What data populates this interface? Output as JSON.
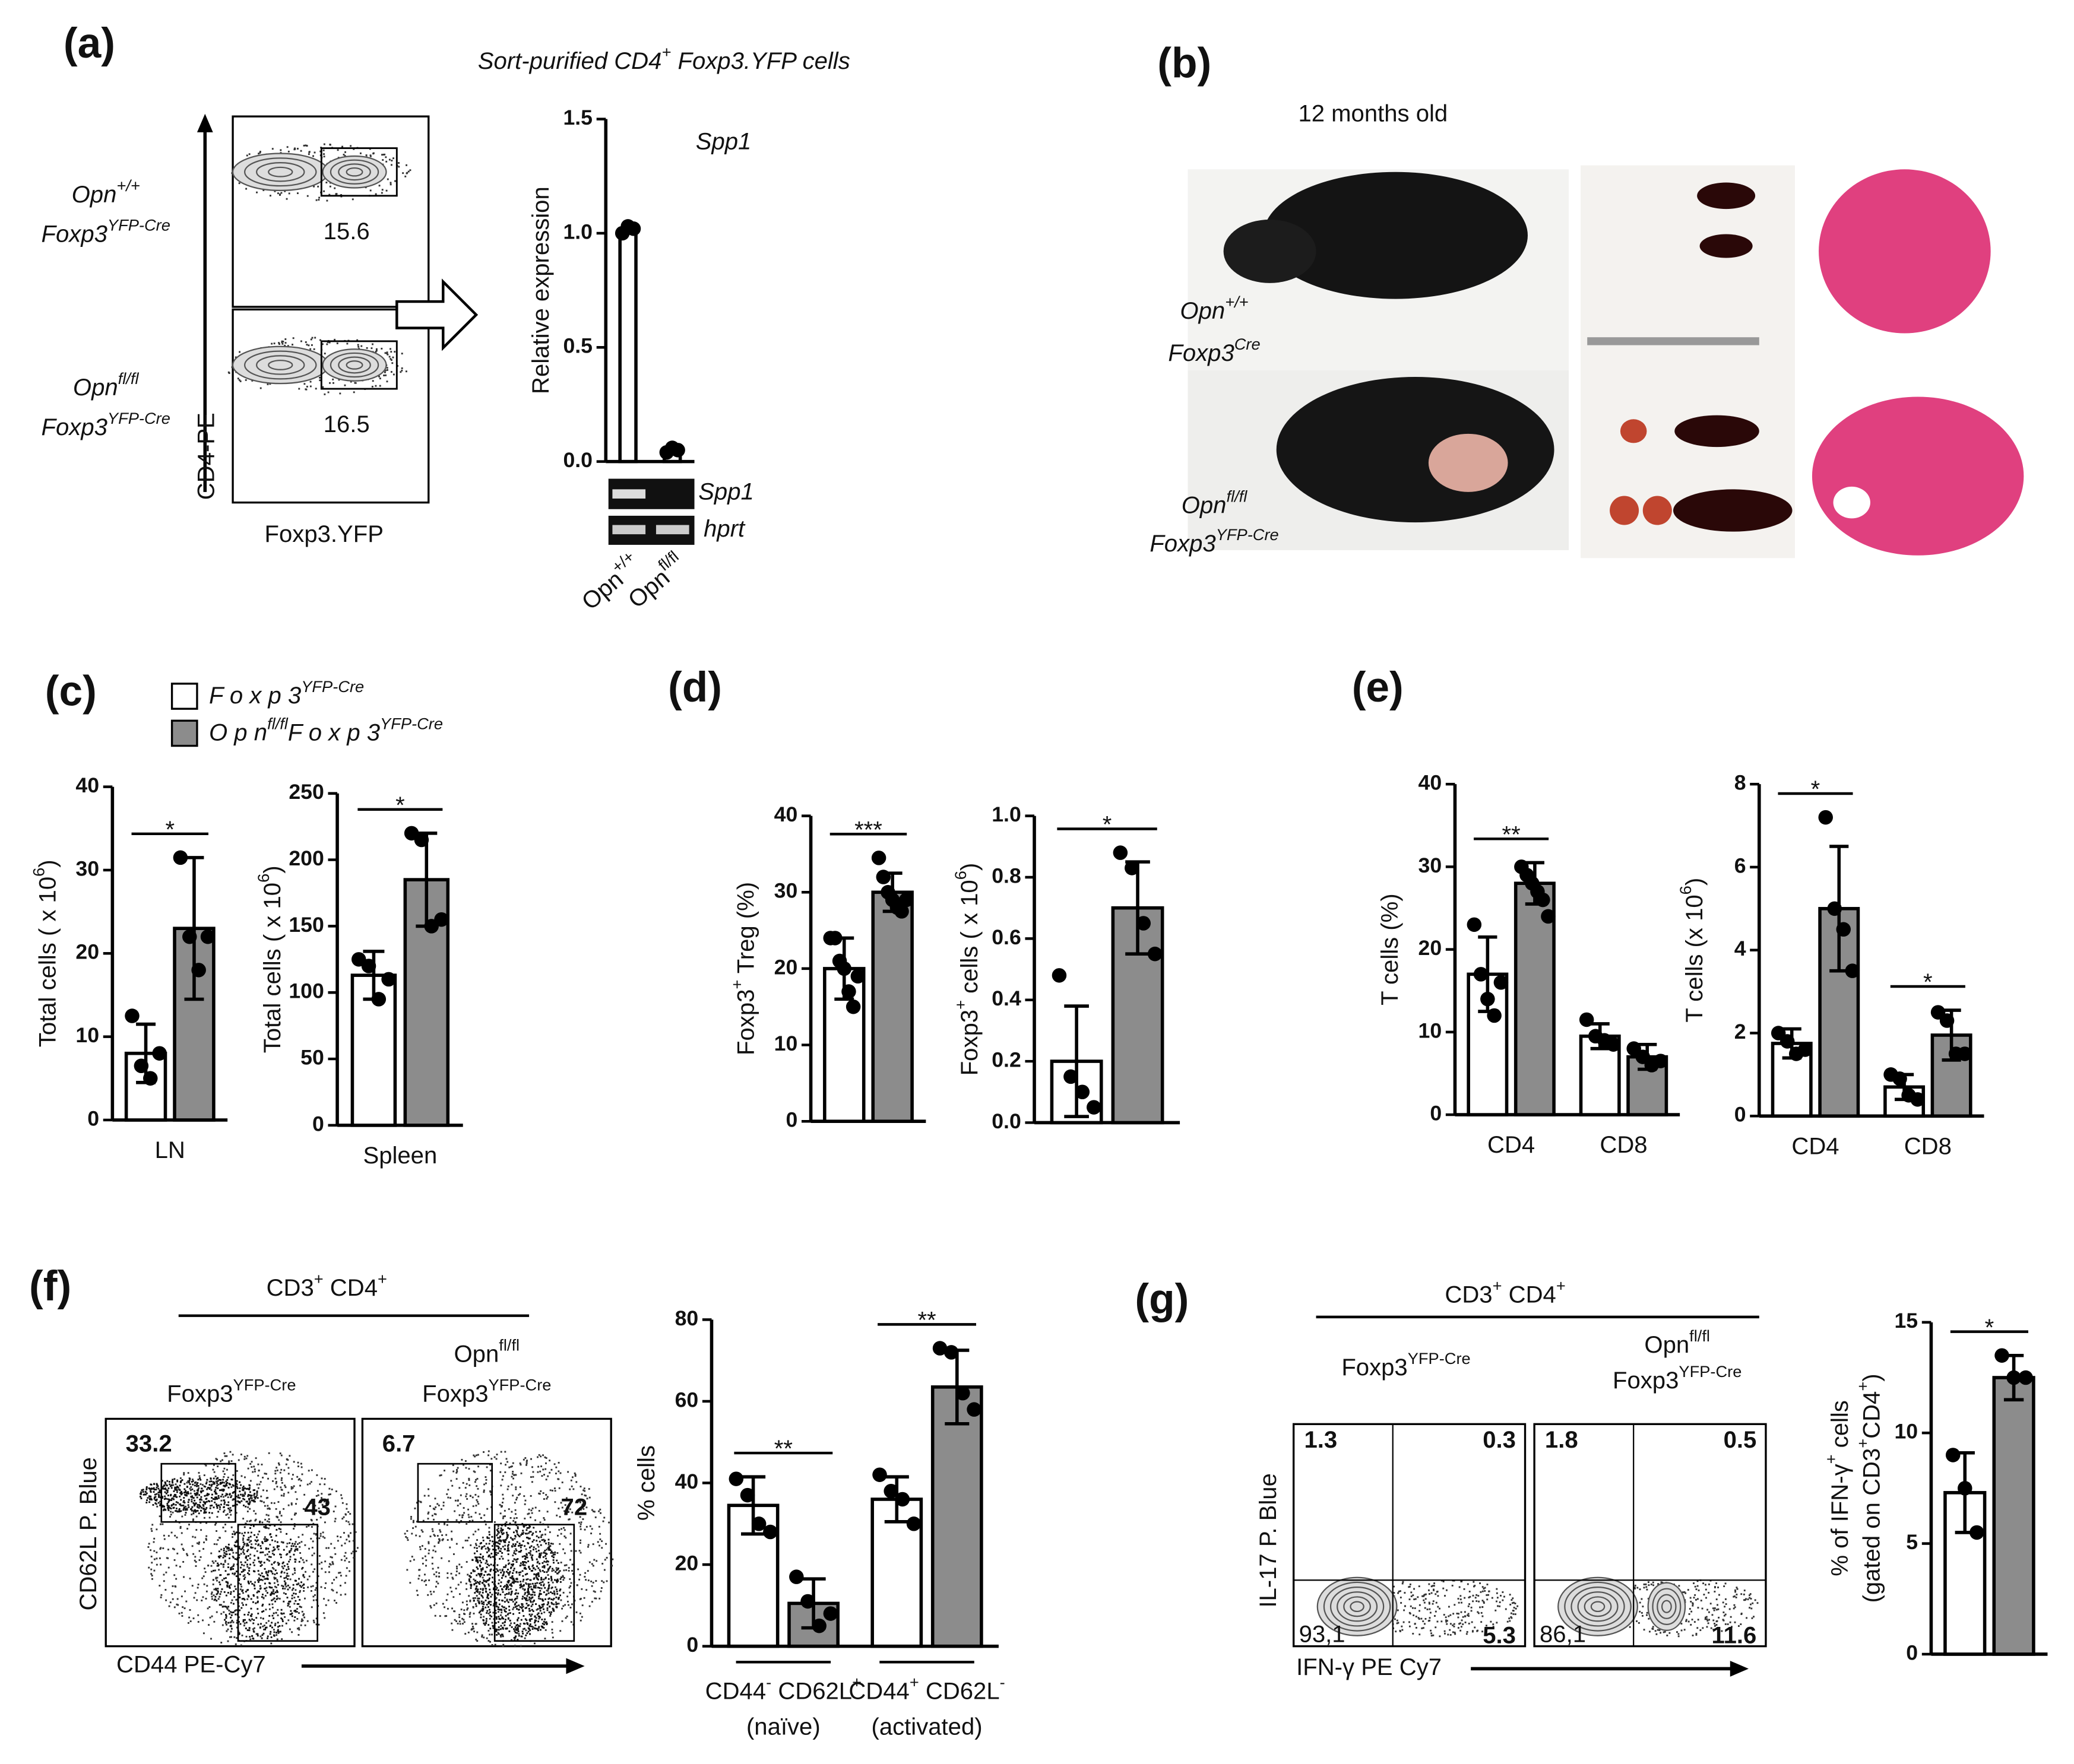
{
  "panel_labels": [
    "(a)",
    "(b)",
    "(c)",
    "(d)",
    "(e)",
    "(f)",
    "(g)"
  ],
  "legend": [
    {
      "label": [
        "F o x p 3",
        {
          "sup": "YFP-Cre"
        }
      ],
      "color": "#ffffff"
    },
    {
      "label": [
        "O p n",
        {
          "sup": "fl/fl"
        },
        "F o x p 3",
        {
          "sup": "YFP-Cre"
        }
      ],
      "color": "#8c8c8c"
    }
  ],
  "panel_a": {
    "title": [
      "Sort-purified CD4",
      {
        "sup": "+"
      },
      " Foxp3.YFP cells"
    ],
    "rows": [
      {
        "line1": [
          "Opn",
          {
            "sup": "+/+"
          }
        ],
        "line2": [
          "Foxp3",
          {
            "sup": "YFP-Cre"
          }
        ],
        "value": 15.6
      },
      {
        "line1": [
          "Opn",
          {
            "sup": "fl/fl"
          }
        ],
        "line2": [
          "Foxp3",
          {
            "sup": "YFP-Cre"
          }
        ],
        "value": 16.5
      }
    ],
    "x_axis": "Foxp3.YFP",
    "y_axis": "CD4-PE",
    "gel": [
      "Spp1",
      "hprt"
    ]
  },
  "panel_b": {
    "title": "12 months old",
    "rows": [
      {
        "line1": [
          "Opn",
          {
            "sup": "+/+"
          }
        ],
        "line2": [
          "Foxp3",
          {
            "sup": "Cre"
          }
        ]
      },
      {
        "line1": [
          "Opn",
          {
            "sup": "fl/fl"
          }
        ],
        "line2": [
          "Foxp3",
          {
            "sup": "YFP-Cre"
          }
        ]
      }
    ]
  },
  "panel_f": {
    "header": [
      "CD3",
      {
        "sup": "+"
      },
      " CD4",
      {
        "sup": "+"
      }
    ],
    "plots": [
      {
        "title": [
          [
            "Foxp3",
            {
              "sup": "YFP-Cre"
            }
          ]
        ],
        "gates": [
          33.2,
          43
        ]
      },
      {
        "title": [
          [
            "Opn",
            {
              "sup": "fl/fl"
            }
          ],
          [
            "Foxp3",
            {
              "sup": "YFP-Cre"
            }
          ]
        ],
        "gates": [
          6.7,
          72
        ]
      }
    ],
    "x_axis": "CD44 PE-Cy7",
    "y_axis": "CD62L P. Blue"
  },
  "panel_g": {
    "header": [
      "CD3",
      {
        "sup": "+"
      },
      " CD4",
      {
        "sup": "+"
      }
    ],
    "plots": [
      {
        "title": [
          [
            "Foxp3",
            {
              "sup": "YFP-Cre"
            }
          ]
        ],
        "quadrants": [
          1.3,
          0.3,
          5.3,
          "93,1"
        ]
      },
      {
        "title": [
          [
            "Opn",
            {
              "sup": "fl/fl"
            }
          ],
          [
            "Foxp3",
            {
              "sup": "YFP-Cre"
            }
          ]
        ],
        "quadrants": [
          1.8,
          0.5,
          11.6,
          "86,1"
        ]
      }
    ],
    "x_axis": "IFN-γ PE Cy7",
    "y_axis": "IL-17 P. Blue"
  },
  "chart_data": [
    {
      "type": "bar",
      "title": "Spp1",
      "ylabel": [
        "Relative expression"
      ],
      "categories": [
        [
          "Opn",
          {
            "sup": "+/+"
          }
        ],
        [
          "Opn",
          {
            "sup": "fl/fl"
          }
        ]
      ],
      "ylim": [
        0,
        1.5
      ],
      "yticks": [
        {
          "value": 0,
          "label": "0.0"
        },
        0.5,
        {
          "value": 1,
          "label": "1.0"
        },
        1.5
      ],
      "series": [
        {
          "color": "#ffffff",
          "values": [
            1.02,
            0.05
          ],
          "errors": [
            0.02,
            0.01
          ],
          "points": [
            [
              1.0,
              1.03,
              1.02
            ],
            [
              0.04,
              0.06,
              0.05
            ]
          ]
        }
      ]
    },
    {
      "type": "bar",
      "ylabel": [
        [
          "Total cells ( x 10",
          {
            "sup": "6"
          },
          ")"
        ]
      ],
      "categories": [
        "LN"
      ],
      "ylim": [
        0,
        40
      ],
      "yticks": [
        0,
        10,
        20,
        30,
        40
      ],
      "significance": [
        "*"
      ],
      "series": [
        {
          "color": "#ffffff",
          "values": [
            8
          ],
          "errors": [
            3.5
          ],
          "points": [
            [
              12.5,
              6.5,
              5,
              8
            ]
          ]
        },
        {
          "color": "#8c8c8c",
          "values": [
            23
          ],
          "errors": [
            8.5
          ],
          "points": [
            [
              31.5,
              22,
              18,
              22
            ]
          ]
        }
      ]
    },
    {
      "type": "bar",
      "ylabel": [
        [
          "Total cells ( x 10",
          {
            "sup": "6"
          },
          ")"
        ]
      ],
      "categories": [
        "Spleen"
      ],
      "ylim": [
        0,
        250
      ],
      "yticks": [
        0,
        50,
        100,
        150,
        200,
        250
      ],
      "significance": [
        "*"
      ],
      "series": [
        {
          "color": "#ffffff",
          "values": [
            113
          ],
          "errors": [
            18
          ],
          "points": [
            [
              125,
              120,
              95,
              110
            ]
          ]
        },
        {
          "color": "#8c8c8c",
          "values": [
            185
          ],
          "errors": [
            35
          ],
          "points": [
            [
              220,
              215,
              150,
              155
            ]
          ]
        }
      ]
    },
    {
      "type": "bar",
      "ylabel": [
        [
          "Foxp3",
          {
            "sup": "+"
          },
          " Treg (%)"
        ]
      ],
      "categories": [
        null
      ],
      "ylim": [
        0,
        40
      ],
      "yticks": [
        0,
        10,
        20,
        30,
        40
      ],
      "significance": [
        "***"
      ],
      "series": [
        {
          "color": "#ffffff",
          "values": [
            20
          ],
          "errors": [
            4
          ],
          "points": [
            [
              24,
              24,
              21,
              20,
              17,
              15,
              19
            ]
          ]
        },
        {
          "color": "#8c8c8c",
          "values": [
            30
          ],
          "errors": [
            2.5
          ],
          "points": [
            [
              34.5,
              32,
              30,
              29,
              28,
              27.5,
              29
            ]
          ]
        }
      ]
    },
    {
      "type": "bar",
      "ylabel": [
        [
          "Foxp3",
          {
            "sup": "+"
          },
          " cells ( x 10",
          {
            "sup": "6"
          },
          ")"
        ]
      ],
      "categories": [
        null
      ],
      "ylim": [
        0,
        1
      ],
      "yticks": [
        {
          "value": 0,
          "label": "0.0"
        },
        0.2,
        0.4,
        0.6,
        0.8,
        {
          "value": 1,
          "label": "1.0"
        }
      ],
      "significance": [
        "*"
      ],
      "series": [
        {
          "color": "#ffffff",
          "values": [
            0.2
          ],
          "errors": [
            0.18
          ],
          "points": [
            [
              0.48,
              0.15,
              0.1,
              0.05
            ]
          ]
        },
        {
          "color": "#8c8c8c",
          "values": [
            0.7
          ],
          "errors": [
            0.15
          ],
          "points": [
            [
              0.88,
              0.83,
              0.65,
              0.55
            ]
          ]
        }
      ]
    },
    {
      "type": "bar",
      "ylabel": [
        "T cells (%)"
      ],
      "categories": [
        "CD4",
        "CD8"
      ],
      "ylim": [
        0,
        40
      ],
      "yticks": [
        0,
        10,
        20,
        30,
        40
      ],
      "significance": [
        "**",
        null
      ],
      "series": [
        {
          "color": "#ffffff",
          "values": [
            17,
            9.5
          ],
          "errors": [
            4.5,
            1.5
          ],
          "points": [
            [
              23,
              17,
              14,
              12,
              16
            ],
            [
              11.5,
              9.5,
              9,
              8.5
            ]
          ]
        },
        {
          "color": "#8c8c8c",
          "values": [
            28,
            7
          ],
          "errors": [
            2.5,
            1.5
          ],
          "points": [
            [
              30,
              29,
              28,
              27,
              26,
              24
            ],
            [
              8,
              7,
              6,
              6.5
            ]
          ]
        }
      ]
    },
    {
      "type": "bar",
      "ylabel": [
        [
          "T cells (x 10",
          {
            "sup": "6"
          },
          ")"
        ]
      ],
      "categories": [
        "CD4",
        "CD8"
      ],
      "ylim": [
        0,
        8
      ],
      "yticks": [
        0,
        2,
        4,
        6,
        8
      ],
      "significance": [
        "*",
        "*"
      ],
      "series": [
        {
          "color": "#ffffff",
          "values": [
            1.75,
            0.7
          ],
          "errors": [
            0.35,
            0.3
          ],
          "points": [
            [
              2.0,
              1.8,
              1.5,
              1.6
            ],
            [
              1.0,
              0.9,
              0.5,
              0.4
            ]
          ]
        },
        {
          "color": "#8c8c8c",
          "values": [
            5,
            1.95
          ],
          "errors": [
            1.5,
            0.6
          ],
          "points": [
            [
              7.2,
              5,
              4.5,
              3.5
            ],
            [
              2.5,
              2.3,
              1.5,
              1.5
            ]
          ]
        }
      ]
    },
    {
      "type": "bar",
      "ylabel": [
        "% cells"
      ],
      "categories": [
        [
          "CD44",
          {
            "sup": "-"
          },
          " CD62L",
          {
            "sup": "+"
          }
        ],
        [
          "CD44",
          {
            "sup": "+"
          },
          " CD62L",
          {
            "sup": "-"
          }
        ]
      ],
      "category_notes": [
        "(naïve)",
        "(activated)"
      ],
      "ylim": [
        0,
        80
      ],
      "yticks": [
        0,
        20,
        40,
        60,
        80
      ],
      "significance": [
        "**",
        "**"
      ],
      "series": [
        {
          "color": "#ffffff",
          "values": [
            34.5,
            36
          ],
          "errors": [
            7,
            5.5
          ],
          "points": [
            [
              41,
              37,
              30,
              28
            ],
            [
              42,
              38,
              36,
              30
            ]
          ]
        },
        {
          "color": "#8c8c8c",
          "values": [
            10.5,
            63.5
          ],
          "errors": [
            6,
            9
          ],
          "points": [
            [
              17,
              11,
              5,
              8
            ],
            [
              73,
              72,
              62,
              58
            ]
          ]
        }
      ]
    },
    {
      "type": "bar",
      "ylabel": [
        [
          "% of IFN-γ",
          {
            "sup": "+"
          },
          " cells"
        ],
        [
          "(gated on CD3",
          {
            "sup": "+"
          },
          "CD4",
          {
            "sup": "+"
          },
          ")"
        ]
      ],
      "categories": [
        null
      ],
      "ylim": [
        0,
        15
      ],
      "yticks": [
        0,
        5,
        10,
        15
      ],
      "significance": [
        "*"
      ],
      "series": [
        {
          "color": "#ffffff",
          "values": [
            7.3
          ],
          "errors": [
            1.8
          ],
          "points": [
            [
              9,
              7.5,
              5.5
            ]
          ]
        },
        {
          "color": "#8c8c8c",
          "values": [
            12.5
          ],
          "errors": [
            1.0
          ],
          "points": [
            [
              13.5,
              12.5,
              12.5
            ]
          ]
        }
      ]
    }
  ]
}
